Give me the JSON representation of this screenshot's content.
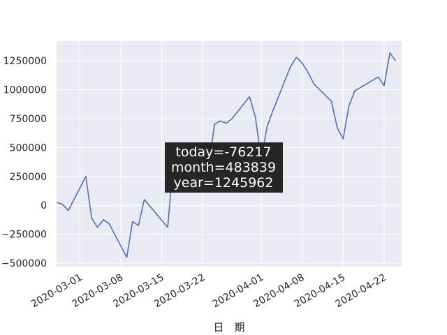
{
  "chart_data": {
    "type": "line",
    "xlabel": "日　期",
    "grid": true,
    "ylim": [
      -530000,
      1420000
    ],
    "xlim": [
      "2020-02-26",
      "2020-04-25"
    ],
    "x_ticks": [
      "2020-03-01",
      "2020-03-08",
      "2020-03-15",
      "2020-03-22",
      "2020-04-01",
      "2020-04-08",
      "2020-04-15",
      "2020-04-22"
    ],
    "y_ticks": [
      -500000,
      -250000,
      0,
      250000,
      500000,
      750000,
      1000000,
      1250000
    ],
    "y_tick_labels": [
      "−500000",
      "−250000",
      "0",
      "250000",
      "500000",
      "750000",
      "1000000",
      "1250000"
    ],
    "series": [
      {
        "color": "#4c72b0",
        "x": [
          "2020-02-26",
          "2020-02-27",
          "2020-02-28",
          "2020-03-02",
          "2020-03-03",
          "2020-03-04",
          "2020-03-05",
          "2020-03-06",
          "2020-03-09",
          "2020-03-10",
          "2020-03-11",
          "2020-03-12",
          "2020-03-16",
          "2020-03-17",
          "2020-03-18",
          "2020-03-19",
          "2020-03-20",
          "2020-03-23",
          "2020-03-24",
          "2020-03-25",
          "2020-03-26",
          "2020-03-27",
          "2020-03-30",
          "2020-03-31",
          "2020-04-01",
          "2020-04-02",
          "2020-04-03",
          "2020-04-06",
          "2020-04-07",
          "2020-04-08",
          "2020-04-09",
          "2020-04-10",
          "2020-04-13",
          "2020-04-14",
          "2020-04-15",
          "2020-04-16",
          "2020-04-17",
          "2020-04-20",
          "2020-04-21",
          "2020-04-22",
          "2020-04-23",
          "2020-04-24"
        ],
        "y": [
          25000,
          10000,
          -45000,
          250000,
          -110000,
          -190000,
          -125000,
          -160000,
          -450000,
          -140000,
          -175000,
          50000,
          -190000,
          400000,
          340000,
          390000,
          330000,
          330000,
          700000,
          730000,
          710000,
          750000,
          940000,
          760000,
          400000,
          680000,
          820000,
          1200000,
          1280000,
          1230000,
          1150000,
          1050000,
          900000,
          670000,
          575000,
          860000,
          990000,
          1080000,
          1110000,
          1035000,
          1320000,
          1250000
        ]
      }
    ],
    "info_box": {
      "lines": [
        "today=-76217",
        "month=483839",
        "year=1245962"
      ],
      "background": "#262626",
      "text_color": "#ffffff"
    },
    "plot_background": "#eaeaf2",
    "grid_color": "#ffffff"
  }
}
